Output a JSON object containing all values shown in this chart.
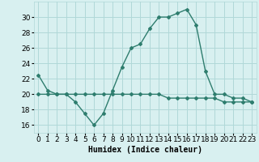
{
  "title": "",
  "xlabel": "Humidex (Indice chaleur)",
  "x": [
    0,
    1,
    2,
    3,
    4,
    5,
    6,
    7,
    8,
    9,
    10,
    11,
    12,
    13,
    14,
    15,
    16,
    17,
    18,
    19,
    20,
    21,
    22,
    23
  ],
  "humidex": [
    22.5,
    20.5,
    20,
    20,
    19,
    17.5,
    16,
    17.5,
    20.5,
    23.5,
    26,
    26.5,
    28.5,
    30,
    30,
    30.5,
    31,
    29,
    23,
    20,
    20,
    19.5,
    19.5,
    19
  ],
  "temp": [
    20,
    20,
    20,
    20,
    20,
    20,
    20,
    20,
    20,
    20,
    20,
    20,
    20,
    20,
    19.5,
    19.5,
    19.5,
    19.5,
    19.5,
    19.5,
    19,
    19,
    19,
    19
  ],
  "line_color": "#2e7d6e",
  "bg_color": "#d8f0f0",
  "grid_color": "#b0d8d8",
  "ylim": [
    15,
    32
  ],
  "yticks": [
    16,
    18,
    20,
    22,
    24,
    26,
    28,
    30
  ],
  "xticks": [
    0,
    1,
    2,
    3,
    4,
    5,
    6,
    7,
    8,
    9,
    10,
    11,
    12,
    13,
    14,
    15,
    16,
    17,
    18,
    19,
    20,
    21,
    22,
    23
  ],
  "xlabel_fontsize": 7,
  "tick_fontsize": 6.5,
  "marker": "D",
  "markersize": 2.0,
  "linewidth": 1.0
}
